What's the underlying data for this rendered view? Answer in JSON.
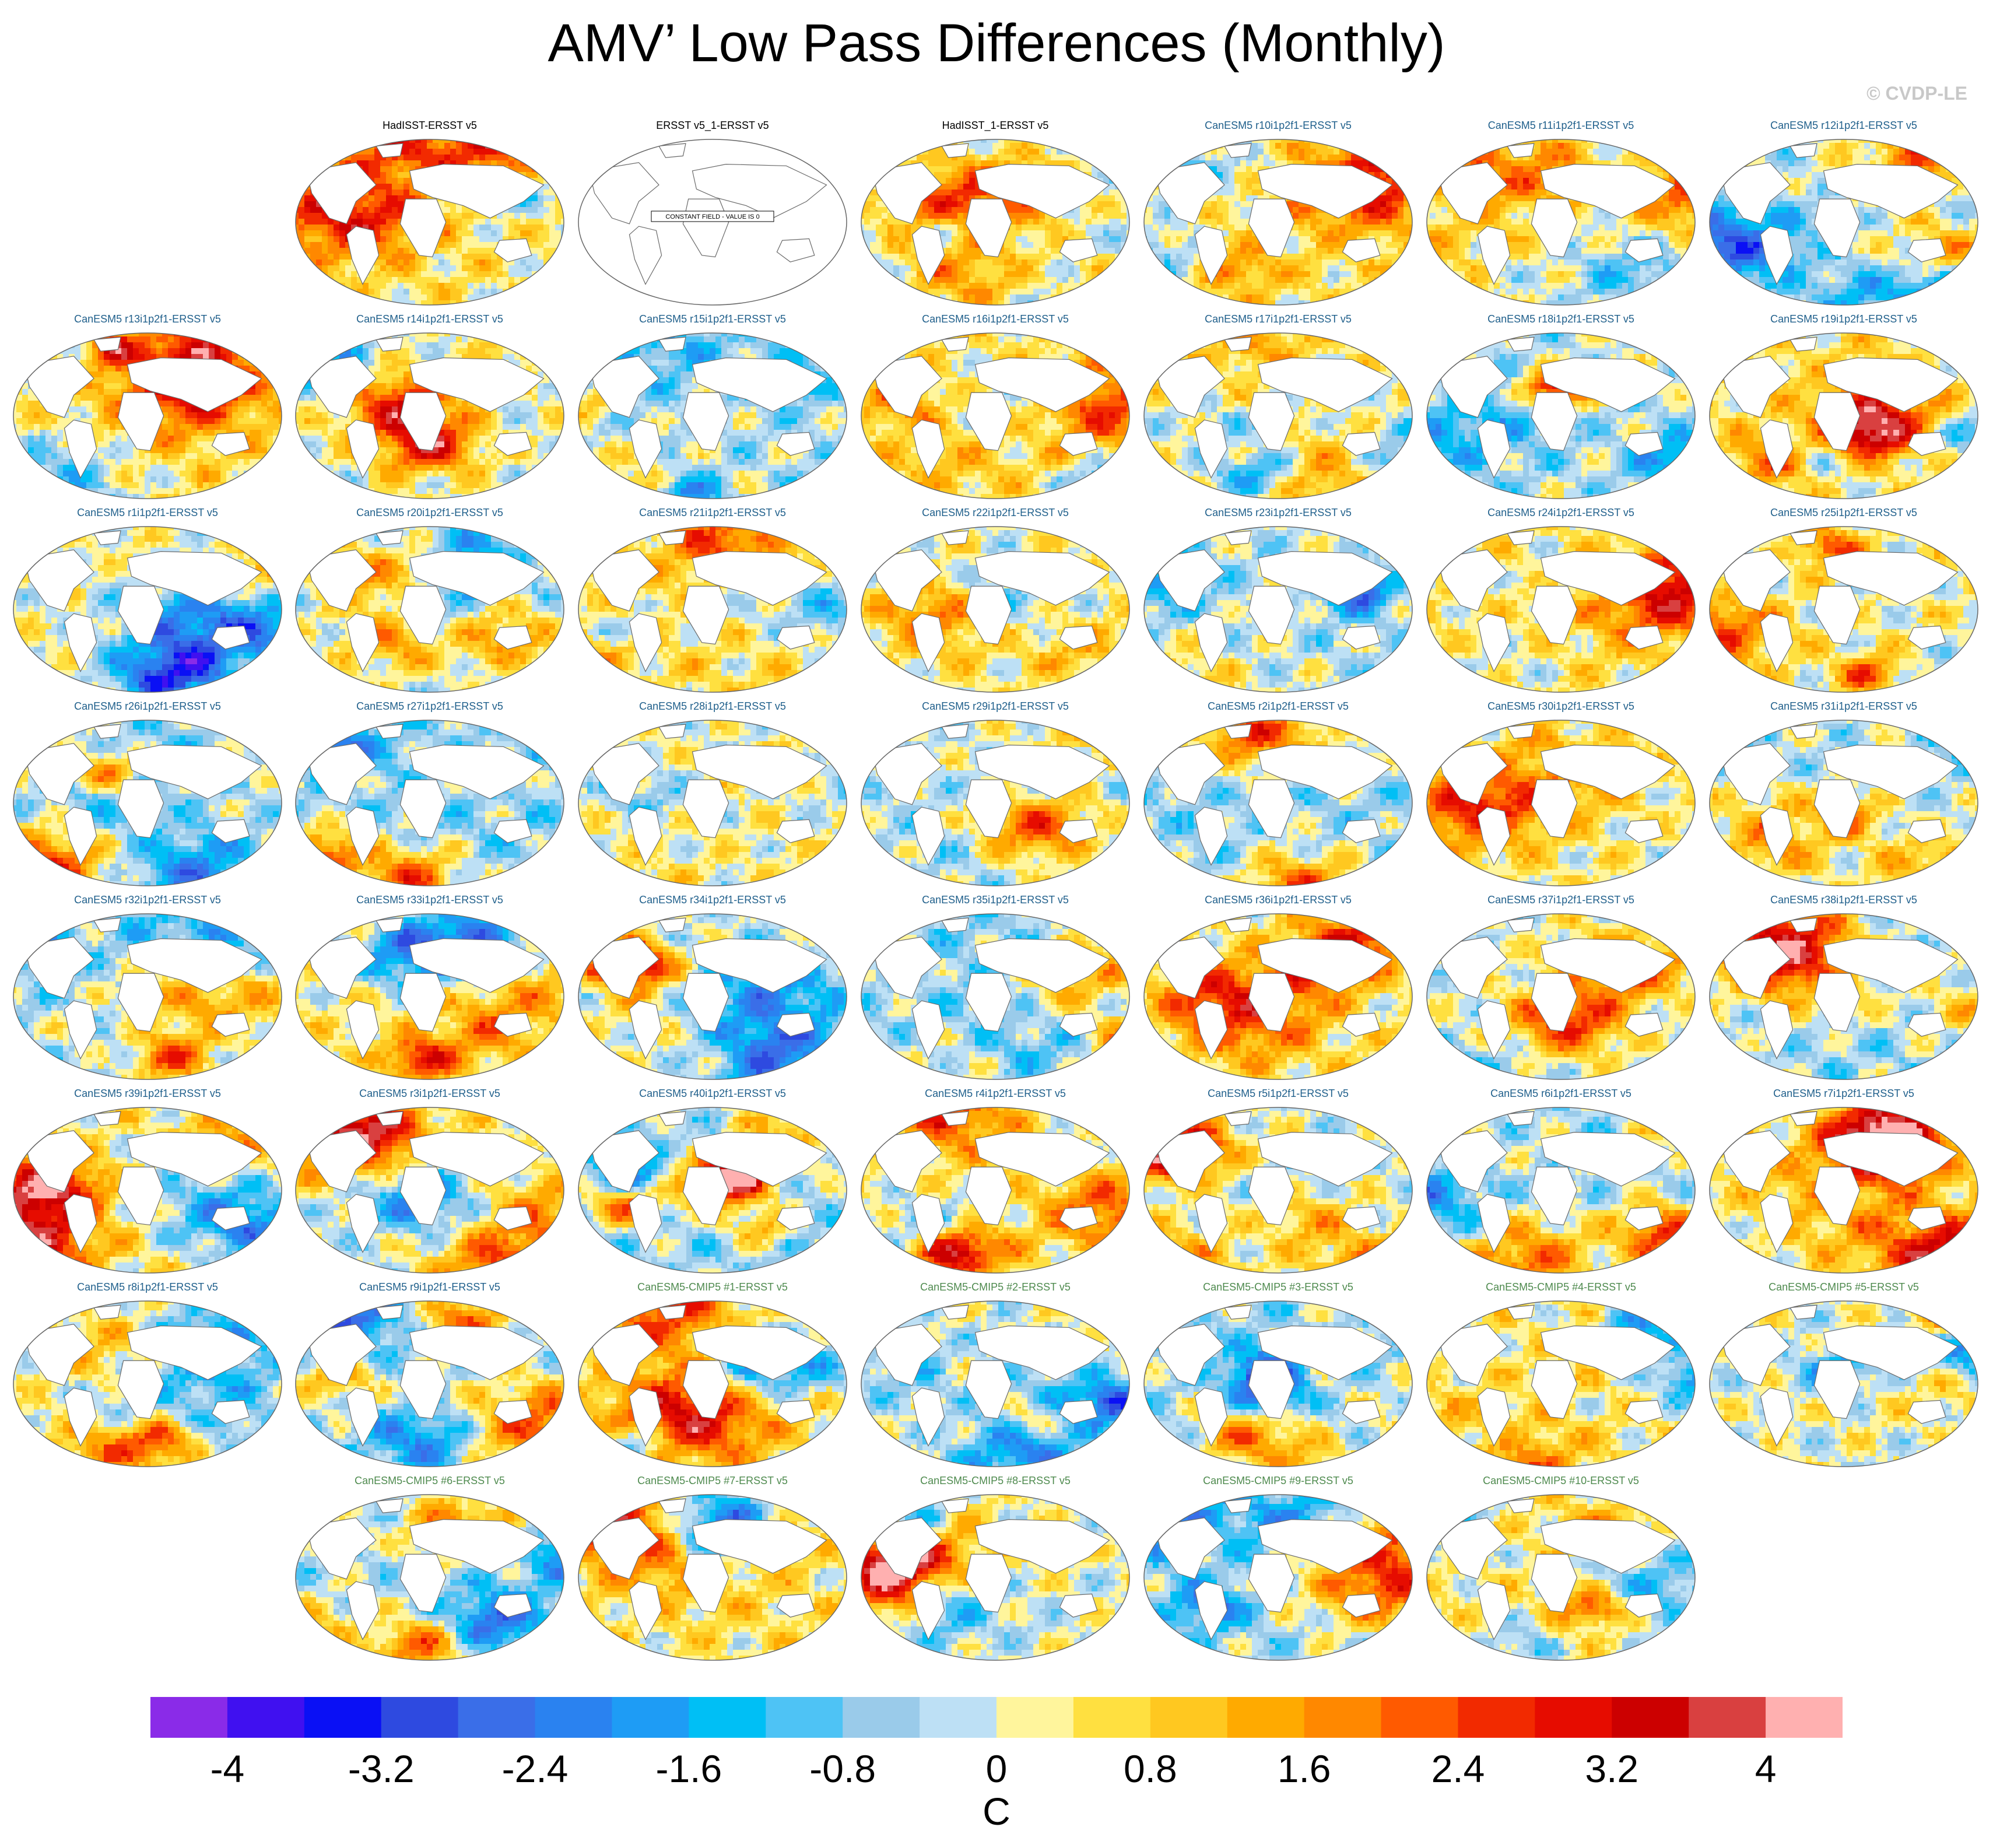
{
  "title": "AMV’ Low Pass Differences (Monthly)",
  "credit": "© CVDP-LE",
  "chart_data": {
    "type": "heatmap",
    "title": "AMV’ Low Pass Differences (Monthly)",
    "subtype": "small-multiple global map panels (Robinson projection)",
    "panel_titles": [
      {
        "label": "HadISST-ERSST v5",
        "group": "obs"
      },
      {
        "label": "ERSST v5_1-ERSST v5",
        "group": "obs",
        "annotation": "CONSTANT FIELD - VALUE IS 0"
      },
      {
        "label": "HadISST_1-ERSST v5",
        "group": "obs"
      },
      {
        "label": "CanESM5 r10i1p2f1-ERSST v5",
        "group": "le"
      },
      {
        "label": "CanESM5 r11i1p2f1-ERSST v5",
        "group": "le"
      },
      {
        "label": "CanESM5 r12i1p2f1-ERSST v5",
        "group": "le"
      },
      {
        "label": "CanESM5 r13i1p2f1-ERSST v5",
        "group": "le"
      },
      {
        "label": "CanESM5 r14i1p2f1-ERSST v5",
        "group": "le"
      },
      {
        "label": "CanESM5 r15i1p2f1-ERSST v5",
        "group": "le"
      },
      {
        "label": "CanESM5 r16i1p2f1-ERSST v5",
        "group": "le"
      },
      {
        "label": "CanESM5 r17i1p2f1-ERSST v5",
        "group": "le"
      },
      {
        "label": "CanESM5 r18i1p2f1-ERSST v5",
        "group": "le"
      },
      {
        "label": "CanESM5 r19i1p2f1-ERSST v5",
        "group": "le"
      },
      {
        "label": "CanESM5 r1i1p2f1-ERSST v5",
        "group": "le"
      },
      {
        "label": "CanESM5 r20i1p2f1-ERSST v5",
        "group": "le"
      },
      {
        "label": "CanESM5 r21i1p2f1-ERSST v5",
        "group": "le"
      },
      {
        "label": "CanESM5 r22i1p2f1-ERSST v5",
        "group": "le"
      },
      {
        "label": "CanESM5 r23i1p2f1-ERSST v5",
        "group": "le"
      },
      {
        "label": "CanESM5 r24i1p2f1-ERSST v5",
        "group": "le"
      },
      {
        "label": "CanESM5 r25i1p2f1-ERSST v5",
        "group": "le"
      },
      {
        "label": "CanESM5 r26i1p2f1-ERSST v5",
        "group": "le"
      },
      {
        "label": "CanESM5 r27i1p2f1-ERSST v5",
        "group": "le"
      },
      {
        "label": "CanESM5 r28i1p2f1-ERSST v5",
        "group": "le"
      },
      {
        "label": "CanESM5 r29i1p2f1-ERSST v5",
        "group": "le"
      },
      {
        "label": "CanESM5 r2i1p2f1-ERSST v5",
        "group": "le"
      },
      {
        "label": "CanESM5 r30i1p2f1-ERSST v5",
        "group": "le"
      },
      {
        "label": "CanESM5 r31i1p2f1-ERSST v5",
        "group": "le"
      },
      {
        "label": "CanESM5 r32i1p2f1-ERSST v5",
        "group": "le"
      },
      {
        "label": "CanESM5 r33i1p2f1-ERSST v5",
        "group": "le"
      },
      {
        "label": "CanESM5 r34i1p2f1-ERSST v5",
        "group": "le"
      },
      {
        "label": "CanESM5 r35i1p2f1-ERSST v5",
        "group": "le"
      },
      {
        "label": "CanESM5 r36i1p2f1-ERSST v5",
        "group": "le"
      },
      {
        "label": "CanESM5 r37i1p2f1-ERSST v5",
        "group": "le"
      },
      {
        "label": "CanESM5 r38i1p2f1-ERSST v5",
        "group": "le"
      },
      {
        "label": "CanESM5 r39i1p2f1-ERSST v5",
        "group": "le"
      },
      {
        "label": "CanESM5 r3i1p2f1-ERSST v5",
        "group": "le"
      },
      {
        "label": "CanESM5 r40i1p2f1-ERSST v5",
        "group": "le"
      },
      {
        "label": "CanESM5 r4i1p2f1-ERSST v5",
        "group": "le"
      },
      {
        "label": "CanESM5 r5i1p2f1-ERSST v5",
        "group": "le"
      },
      {
        "label": "CanESM5 r6i1p2f1-ERSST v5",
        "group": "le"
      },
      {
        "label": "CanESM5 r7i1p2f1-ERSST v5",
        "group": "le"
      },
      {
        "label": "CanESM5 r8i1p2f1-ERSST v5",
        "group": "le"
      },
      {
        "label": "CanESM5 r9i1p2f1-ERSST v5",
        "group": "le"
      },
      {
        "label": "CanESM5-CMIP5 #1-ERSST v5",
        "group": "cmip"
      },
      {
        "label": "CanESM5-CMIP5 #2-ERSST v5",
        "group": "cmip"
      },
      {
        "label": "CanESM5-CMIP5 #3-ERSST v5",
        "group": "cmip"
      },
      {
        "label": "CanESM5-CMIP5 #4-ERSST v5",
        "group": "cmip"
      },
      {
        "label": "CanESM5-CMIP5 #5-ERSST v5",
        "group": "cmip"
      },
      {
        "label": "CanESM5-CMIP5 #6-ERSST v5",
        "group": "cmip"
      },
      {
        "label": "CanESM5-CMIP5 #7-ERSST v5",
        "group": "cmip"
      },
      {
        "label": "CanESM5-CMIP5 #8-ERSST v5",
        "group": "cmip"
      },
      {
        "label": "CanESM5-CMIP5 #9-ERSST v5",
        "group": "cmip"
      },
      {
        "label": "CanESM5-CMIP5 #10-ERSST v5",
        "group": "cmip"
      }
    ],
    "colorbar": {
      "unit": "C",
      "min": -4.4,
      "max": 4.4,
      "step": 0.4,
      "tick_labels": [
        "-4",
        "-3.2",
        "-2.4",
        "-1.6",
        "-0.8",
        "0",
        "0.8",
        "1.6",
        "2.4",
        "3.2",
        "4"
      ],
      "tick_values": [
        -4,
        -3.2,
        -2.4,
        -1.6,
        -0.8,
        0,
        0.8,
        1.6,
        2.4,
        3.2,
        4
      ],
      "colors": [
        "#8a2be8",
        "#4010f0",
        "#0a10f5",
        "#2e4ae0",
        "#3a6ee8",
        "#2a82f0",
        "#1e9cf5",
        "#00bff5",
        "#4ec3f5",
        "#9acbea",
        "#bde0f5",
        "#fff59c",
        "#ffe040",
        "#ffc820",
        "#ffaa00",
        "#ff8800",
        "#ff5a00",
        "#f22a00",
        "#e60c00",
        "#cc0000",
        "#d94040",
        "#ffb0b0"
      ]
    }
  }
}
